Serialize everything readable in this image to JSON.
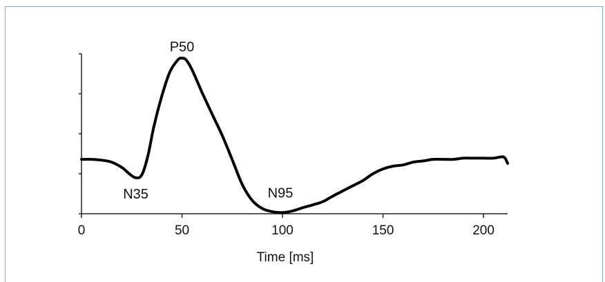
{
  "chart_data": {
    "type": "line",
    "title": "",
    "xlabel": "Time [ms]",
    "ylabel": "",
    "xlim": [
      0,
      212
    ],
    "ylim": [
      0,
      4
    ],
    "x_ticks": [
      0,
      50,
      100,
      150,
      200
    ],
    "x_tick_labels": [
      "0",
      "50",
      "100",
      "150",
      "200"
    ],
    "y_ticks": [
      0,
      1,
      2,
      3,
      4
    ],
    "y_tick_labels": [],
    "grid": false,
    "series": [
      {
        "name": "",
        "color": "#000000",
        "x": [
          0,
          5,
          10,
          15,
          20,
          24,
          27,
          30,
          33,
          36,
          40,
          44,
          48,
          50,
          52,
          55,
          60,
          65,
          70,
          75,
          80,
          85,
          90,
          95,
          100,
          105,
          110,
          115,
          120,
          125,
          130,
          135,
          140,
          145,
          150,
          155,
          160,
          165,
          170,
          175,
          180,
          185,
          190,
          195,
          200,
          205,
          210,
          212
        ],
        "y": [
          1.36,
          1.36,
          1.34,
          1.29,
          1.16,
          0.99,
          0.9,
          0.97,
          1.44,
          2.18,
          2.95,
          3.55,
          3.85,
          3.89,
          3.85,
          3.6,
          3.03,
          2.49,
          1.96,
          1.35,
          0.73,
          0.33,
          0.13,
          0.05,
          0.03,
          0.07,
          0.15,
          0.22,
          0.3,
          0.44,
          0.57,
          0.7,
          0.83,
          1.0,
          1.12,
          1.19,
          1.22,
          1.29,
          1.32,
          1.36,
          1.36,
          1.36,
          1.39,
          1.39,
          1.39,
          1.39,
          1.42,
          1.26
        ]
      }
    ],
    "annotations": [
      {
        "text": "P50",
        "x": 50,
        "y": 3.89,
        "position": "above"
      },
      {
        "text": "N35",
        "x": 27,
        "y": 0.9,
        "position": "below"
      },
      {
        "text": "N95",
        "x": 100,
        "y": 0.03,
        "position": "above"
      }
    ]
  }
}
